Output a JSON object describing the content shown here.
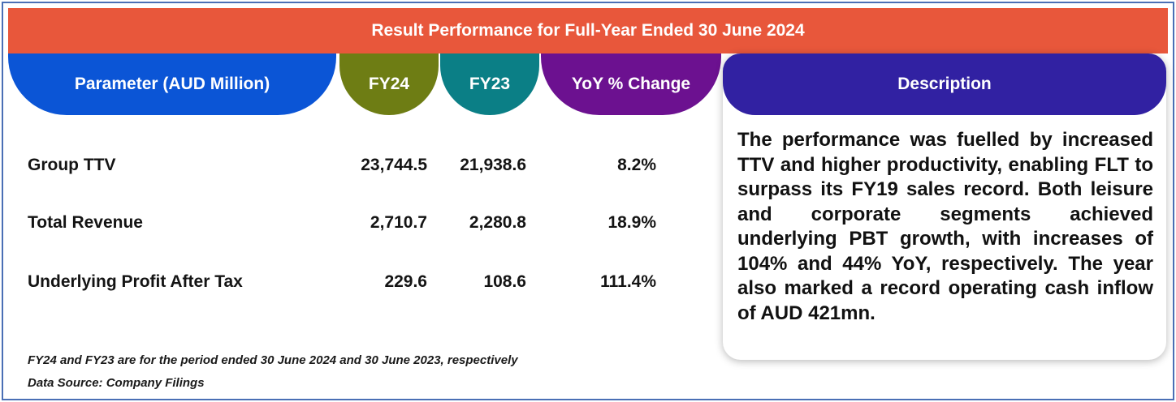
{
  "title": "Result Performance for Full-Year Ended 30 June 2024",
  "headers": {
    "parameter": "Parameter (AUD Million)",
    "fy24": "FY24",
    "fy23": "FY23",
    "yoy": "YoY % Change",
    "description": "Description"
  },
  "rows": [
    {
      "label": "Group TTV",
      "fy24": "23,744.5",
      "fy23": "21,938.6",
      "yoy": "8.2%"
    },
    {
      "label": "Total Revenue",
      "fy24": "2,710.7",
      "fy23": "2,280.8",
      "yoy": "18.9%"
    },
    {
      "label": "Underlying Profit After Tax",
      "fy24": "229.6",
      "fy23": "108.6",
      "yoy": "111.4%"
    }
  ],
  "description": "The performance was fuelled by increased TTV and higher productivity, enabling FLT to surpass its FY19 sales record. Both leisure and corporate segments achieved underlying PBT growth, with increases of 104% and 44% YoY, respectively. The year also marked a record operating cash inflow of AUD 421mn.",
  "footnote": "FY24 and FY23 are for the period ended 30 June 2024 and 30 June 2023, respectively",
  "source": "Data Source: Company Filings",
  "colors": {
    "banner": "#e8573b",
    "parameter": "#0b55d6",
    "fy24": "#6e7d14",
    "fy23": "#0b7f86",
    "yoy": "#6c1190",
    "description": "#3121a2"
  }
}
